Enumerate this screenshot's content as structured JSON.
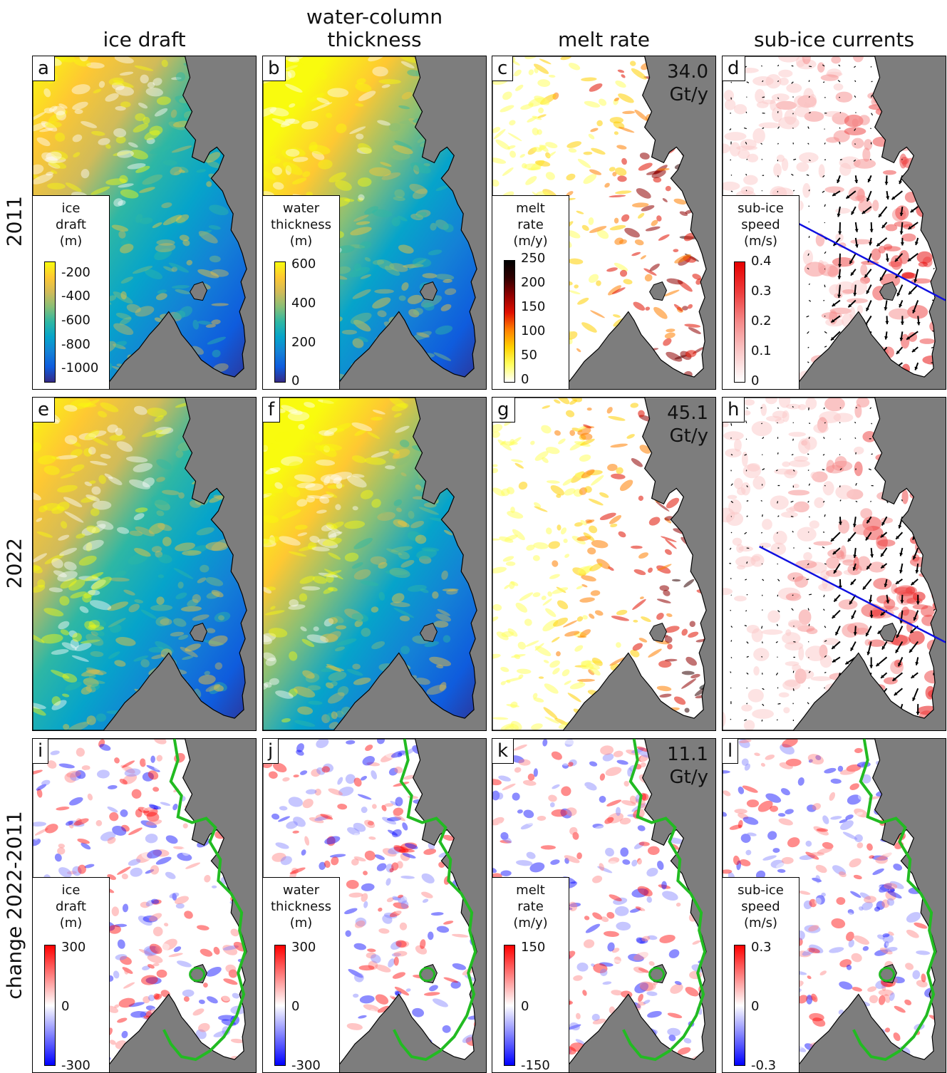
{
  "columns": [
    {
      "title_line1": "",
      "title_line2": "ice draft"
    },
    {
      "title_line1": "water-column",
      "title_line2": "thickness"
    },
    {
      "title_line1": "",
      "title_line2": "melt rate"
    },
    {
      "title_line1": "",
      "title_line2": "sub-ice currents"
    }
  ],
  "rows": [
    "2011",
    "2022",
    "change 2022-2011"
  ],
  "panels": {
    "a": {
      "letter": "a"
    },
    "b": {
      "letter": "b"
    },
    "c": {
      "letter": "c",
      "stat_value": "34.0",
      "stat_unit": "Gt/y"
    },
    "d": {
      "letter": "d"
    },
    "e": {
      "letter": "e"
    },
    "f": {
      "letter": "f"
    },
    "g": {
      "letter": "g",
      "stat_value": "45.1",
      "stat_unit": "Gt/y"
    },
    "h": {
      "letter": "h"
    },
    "i": {
      "letter": "i"
    },
    "j": {
      "letter": "j"
    },
    "k": {
      "letter": "k",
      "stat_value": "11.1",
      "stat_unit": "Gt/y"
    },
    "l": {
      "letter": "l"
    }
  },
  "colorbars": {
    "ice_draft": {
      "title": [
        "ice",
        "draft",
        "(m)"
      ],
      "ticks": [
        "-200",
        "-400",
        "-600",
        "-800",
        "-1000"
      ]
    },
    "water_thickness": {
      "title": [
        "water",
        "thickness",
        "(m)"
      ],
      "ticks": [
        "600",
        "400",
        "200",
        "0"
      ]
    },
    "melt_rate": {
      "title": [
        "melt",
        "rate",
        "(m/y)"
      ],
      "ticks": [
        "250",
        "200",
        "150",
        "100",
        "50",
        "0"
      ]
    },
    "sub_ice_speed": {
      "title": [
        "sub-ice",
        "speed",
        "(m/s)"
      ],
      "ticks": [
        "0.4",
        "0.3",
        "0.2",
        "0.1",
        "0"
      ]
    },
    "ice_draft_change": {
      "title": [
        "ice",
        "draft",
        "(m)"
      ],
      "ticks": [
        "300",
        "0",
        "-300"
      ]
    },
    "water_thickness_change": {
      "title": [
        "water",
        "thickness",
        "(m)"
      ],
      "ticks": [
        "300",
        "0",
        "-300"
      ]
    },
    "melt_rate_change": {
      "title": [
        "melt",
        "rate",
        "(m/y)"
      ],
      "ticks": [
        "150",
        "0",
        "-150"
      ]
    },
    "sub_ice_speed_change": {
      "title": [
        "sub-ice",
        "speed",
        "(m/s)"
      ],
      "ticks": [
        "0.3",
        "0",
        "-0.3"
      ]
    }
  },
  "colors": {
    "land": "#7d7d7d",
    "section_line": "#1010e0",
    "change_contour": "#22bb22",
    "parula": [
      "#352a87",
      "#0f5cdd",
      "#1481d6",
      "#06a4ca",
      "#2eb7a4",
      "#87bf77",
      "#d1bb59",
      "#fec832",
      "#f9fb0e"
    ],
    "hot": [
      "#ffffff",
      "#ffff60",
      "#ffd000",
      "#ff8000",
      "#e01000",
      "#900000",
      "#300000",
      "#000000"
    ],
    "reds": [
      "#ffffff",
      "#fbc8c8",
      "#f58a8a",
      "#ee3c3c",
      "#e60000"
    ],
    "bwr": [
      "#0000ff",
      "#8080ff",
      "#ffffff",
      "#ff8080",
      "#ff0000"
    ]
  }
}
